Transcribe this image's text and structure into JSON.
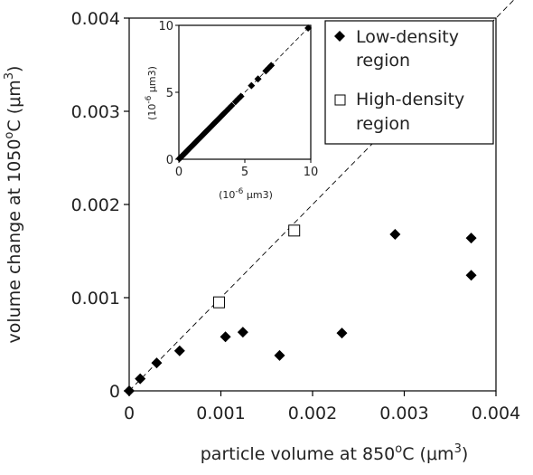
{
  "chart_data": [
    {
      "type": "scatter",
      "title": "",
      "xlabel": {
        "main": "particle volume at 850",
        "sup1": "o",
        "unit_pre": "C (",
        "mu": "μ",
        "unit_m": "m",
        "sup2": "3",
        "close": ")"
      },
      "ylabel": {
        "main": "volume change at 1050",
        "sup1": "o",
        "unit_pre": "C (",
        "mu": "μ",
        "unit_m": "m",
        "sup2": "3",
        "close": ")"
      },
      "xlim": [
        0,
        0.004
      ],
      "ylim": [
        0,
        0.004
      ],
      "xticks": [
        "0",
        "0.001",
        "0.002",
        "0.003",
        "0.004"
      ],
      "yticks": [
        "0",
        "0.001",
        "0.002",
        "0.003",
        "0.004"
      ],
      "reference_line": "y = x (dashed)",
      "legend_position": "top-right",
      "series": [
        {
          "name": "Low-density region",
          "marker": "filled-diamond",
          "color": "#000000",
          "points": [
            [
              0.0,
              0.0
            ],
            [
              0.00012,
              0.00013
            ],
            [
              0.0003,
              0.0003
            ],
            [
              0.00055,
              0.00043
            ],
            [
              0.00105,
              0.00058
            ],
            [
              0.00124,
              0.00063
            ],
            [
              0.00164,
              0.00038
            ],
            [
              0.00232,
              0.00062
            ],
            [
              0.0029,
              0.00168
            ],
            [
              0.00373,
              0.00164
            ],
            [
              0.00373,
              0.00124
            ]
          ]
        },
        {
          "name": "High-density region",
          "marker": "open-square",
          "color": "#000000",
          "points": [
            [
              0.00098,
              0.00095
            ],
            [
              0.0018,
              0.00172
            ]
          ]
        }
      ],
      "legend_labels": [
        [
          "Low-density",
          "region"
        ],
        [
          "High-density",
          "region"
        ]
      ]
    },
    {
      "type": "scatter",
      "inset": true,
      "xlabel": {
        "pre": "(10",
        "sup": "-6",
        "post": " μm3)"
      },
      "ylabel": {
        "pre": "(10",
        "sup": "-6",
        "post": " μm3)"
      },
      "xlim": [
        0,
        10
      ],
      "ylim": [
        0,
        10
      ],
      "xticks": [
        "0",
        "5",
        "10"
      ],
      "yticks": [
        "0",
        "5",
        "10"
      ],
      "reference_line": "y = x (dashed)",
      "series": [
        {
          "name": "",
          "marker": "filled-diamond",
          "points": [
            [
              0.05,
              0.05
            ],
            [
              0.1,
              0.1
            ],
            [
              0.15,
              0.15
            ],
            [
              0.2,
              0.2
            ],
            [
              0.25,
              0.25
            ],
            [
              0.3,
              0.3
            ],
            [
              0.4,
              0.4
            ],
            [
              0.5,
              0.5
            ],
            [
              0.6,
              0.6
            ],
            [
              0.7,
              0.7
            ],
            [
              0.8,
              0.8
            ],
            [
              0.9,
              0.9
            ],
            [
              1.0,
              1.0
            ],
            [
              1.1,
              1.1
            ],
            [
              1.2,
              1.2
            ],
            [
              1.3,
              1.3
            ],
            [
              1.4,
              1.4
            ],
            [
              1.5,
              1.5
            ],
            [
              1.6,
              1.6
            ],
            [
              1.7,
              1.7
            ],
            [
              1.8,
              1.8
            ],
            [
              1.9,
              1.9
            ],
            [
              2.0,
              2.0
            ],
            [
              2.1,
              2.1
            ],
            [
              2.2,
              2.2
            ],
            [
              2.3,
              2.3
            ],
            [
              2.4,
              2.4
            ],
            [
              2.5,
              2.5
            ],
            [
              2.6,
              2.6
            ],
            [
              2.7,
              2.7
            ],
            [
              2.8,
              2.8
            ],
            [
              2.9,
              2.9
            ],
            [
              3.0,
              3.0
            ],
            [
              3.1,
              3.1
            ],
            [
              3.2,
              3.2
            ],
            [
              3.3,
              3.3
            ],
            [
              3.4,
              3.4
            ],
            [
              3.6,
              3.6
            ],
            [
              3.8,
              3.8
            ],
            [
              4.0,
              4.0
            ],
            [
              4.3,
              4.3
            ],
            [
              4.5,
              4.5
            ],
            [
              4.7,
              4.7
            ],
            [
              5.5,
              5.5
            ],
            [
              6.0,
              6.0
            ],
            [
              6.6,
              6.6
            ],
            [
              6.8,
              6.8
            ],
            [
              7.0,
              7.0
            ],
            [
              9.8,
              9.8
            ]
          ]
        }
      ]
    }
  ]
}
